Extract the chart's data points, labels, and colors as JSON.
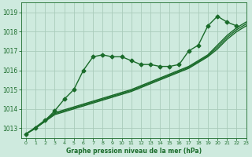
{
  "title": "Graphe pression niveau de la mer (hPa)",
  "background_color": "#ceeade",
  "grid_color": "#aaccbb",
  "line_color": "#1a6b2a",
  "xlim": [
    -0.5,
    23
  ],
  "ylim": [
    1012.5,
    1019.5
  ],
  "yticks": [
    1013,
    1014,
    1015,
    1016,
    1017,
    1018,
    1019
  ],
  "xticks": [
    0,
    1,
    2,
    3,
    4,
    5,
    6,
    7,
    8,
    9,
    10,
    11,
    12,
    13,
    14,
    15,
    16,
    17,
    18,
    19,
    20,
    21,
    22,
    23
  ],
  "series": [
    {
      "x": [
        0,
        1,
        2,
        3,
        4,
        5,
        6,
        7,
        8,
        9,
        10,
        11,
        12,
        13,
        14,
        15,
        16,
        17,
        18,
        19,
        20,
        21,
        22
      ],
      "y": [
        1012.7,
        1013.0,
        1013.4,
        1013.9,
        1014.5,
        1015.0,
        1016.0,
        1016.7,
        1016.8,
        1016.7,
        1016.7,
        1016.5,
        1016.3,
        1016.3,
        1016.2,
        1016.2,
        1016.3,
        1017.0,
        1017.3,
        1018.3,
        1018.8,
        1018.5,
        1018.3
      ],
      "marker": "D",
      "markersize": 2.5,
      "linewidth": 1.0
    },
    {
      "x": [
        0,
        1,
        2,
        3,
        4,
        5,
        6,
        7,
        8,
        9,
        10,
        11,
        12,
        13,
        14,
        15,
        16,
        17,
        18,
        19,
        20,
        21,
        22,
        23
      ],
      "y": [
        1012.7,
        1013.0,
        1013.35,
        1013.7,
        1013.85,
        1014.0,
        1014.15,
        1014.3,
        1014.45,
        1014.6,
        1014.75,
        1014.9,
        1015.1,
        1015.3,
        1015.5,
        1015.7,
        1015.9,
        1016.1,
        1016.4,
        1016.7,
        1017.1,
        1017.6,
        1018.0,
        1018.3
      ],
      "marker": null,
      "markersize": 0,
      "linewidth": 1.0
    },
    {
      "x": [
        0,
        1,
        2,
        3,
        4,
        5,
        6,
        7,
        8,
        9,
        10,
        11,
        12,
        13,
        14,
        15,
        16,
        17,
        18,
        19,
        20,
        21,
        22,
        23
      ],
      "y": [
        1012.7,
        1013.0,
        1013.38,
        1013.75,
        1013.9,
        1014.05,
        1014.2,
        1014.35,
        1014.5,
        1014.65,
        1014.8,
        1014.95,
        1015.15,
        1015.35,
        1015.55,
        1015.75,
        1015.95,
        1016.15,
        1016.45,
        1016.75,
        1017.2,
        1017.7,
        1018.1,
        1018.4
      ],
      "marker": null,
      "markersize": 0,
      "linewidth": 1.0
    },
    {
      "x": [
        0,
        1,
        2,
        3,
        4,
        5,
        6,
        7,
        8,
        9,
        10,
        11,
        12,
        13,
        14,
        15,
        16,
        17,
        18,
        19,
        20,
        21,
        22,
        23
      ],
      "y": [
        1012.7,
        1013.05,
        1013.42,
        1013.8,
        1013.95,
        1014.1,
        1014.25,
        1014.4,
        1014.55,
        1014.7,
        1014.85,
        1015.0,
        1015.2,
        1015.4,
        1015.6,
        1015.8,
        1016.0,
        1016.2,
        1016.5,
        1016.8,
        1017.3,
        1017.8,
        1018.2,
        1018.5
      ],
      "marker": null,
      "markersize": 0,
      "linewidth": 1.0
    }
  ]
}
